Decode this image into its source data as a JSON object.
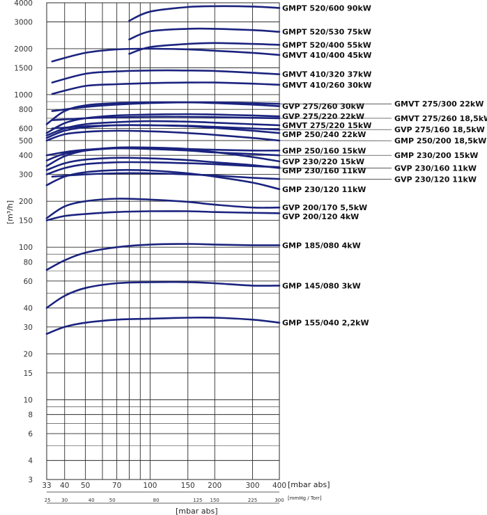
{
  "chart_data": {
    "type": "line",
    "ylabel": "[m³/h]",
    "xlabel": "[mbar abs]",
    "x2label": "[mmHg / Torr]",
    "bottom_label": "[mbar abs]",
    "y_scale": "log",
    "x_scale": "log",
    "ylim": [
      3,
      4000
    ],
    "xlim": [
      33,
      400
    ],
    "grid": true,
    "colors": {
      "curve": "#1a237e",
      "grid": "#2a2a2a",
      "text": "#111111"
    },
    "y_ticks": [
      {
        "v": 3,
        "t": "3"
      },
      {
        "v": 4,
        "t": "4"
      },
      {
        "v": 6,
        "t": "6"
      },
      {
        "v": 8,
        "t": "8"
      },
      {
        "v": 10,
        "t": "10"
      },
      {
        "v": 15,
        "t": "15"
      },
      {
        "v": 20,
        "t": "20"
      },
      {
        "v": 30,
        "t": "30"
      },
      {
        "v": 40,
        "t": "40"
      },
      {
        "v": 60,
        "t": "60"
      },
      {
        "v": 80,
        "t": "80"
      },
      {
        "v": 100,
        "t": "100"
      },
      {
        "v": 150,
        "t": "150"
      },
      {
        "v": 200,
        "t": "200"
      },
      {
        "v": 300,
        "t": "300"
      },
      {
        "v": 400,
        "t": "400"
      },
      {
        "v": 500,
        "t": "500"
      },
      {
        "v": 600,
        "t": "600"
      },
      {
        "v": 800,
        "t": "800"
      },
      {
        "v": 1000,
        "t": "1000"
      },
      {
        "v": 1500,
        "t": "1500"
      },
      {
        "v": 2000,
        "t": "2000"
      },
      {
        "v": 3000,
        "t": "3000"
      },
      {
        "v": 4000,
        "t": "4000"
      }
    ],
    "y_minor_lines": [
      5,
      7,
      9,
      50,
      70,
      90,
      500,
      700,
      900
    ],
    "x_ticks": [
      {
        "v": 33,
        "t": "33"
      },
      {
        "v": 40,
        "t": "40"
      },
      {
        "v": 50,
        "t": "50"
      },
      {
        "v": 70,
        "t": "70"
      },
      {
        "v": 100,
        "t": "100"
      },
      {
        "v": 150,
        "t": "150"
      },
      {
        "v": 200,
        "t": "200"
      },
      {
        "v": 300,
        "t": "300"
      },
      {
        "v": 400,
        "t": "400"
      }
    ],
    "x_grid": [
      33,
      40,
      50,
      60,
      70,
      80,
      90,
      100,
      150,
      200,
      300,
      400
    ],
    "x2_ticks": [
      {
        "v": 33.3,
        "t": "25"
      },
      {
        "v": 40,
        "t": "30"
      },
      {
        "v": 53.3,
        "t": "40"
      },
      {
        "v": 66.7,
        "t": "50"
      },
      {
        "v": 106.7,
        "t": "80"
      },
      {
        "v": 166.7,
        "t": "125"
      },
      {
        "v": 200,
        "t": "150"
      },
      {
        "v": 300,
        "t": "225"
      },
      {
        "v": 400,
        "t": "300"
      }
    ],
    "series": [
      {
        "name": "GMPT 520/600 90kW",
        "x": [
          80,
          100,
          150,
          200,
          300,
          400
        ],
        "y": [
          3050,
          3500,
          3750,
          3800,
          3780,
          3700
        ]
      },
      {
        "name": "GMPT 520/530 75kW",
        "x": [
          80,
          100,
          150,
          200,
          300,
          400
        ],
        "y": [
          2300,
          2600,
          2700,
          2700,
          2650,
          2580
        ]
      },
      {
        "name": "GMPT 520/400 55kW",
        "x": [
          80,
          100,
          150,
          200,
          300,
          400
        ],
        "y": [
          1850,
          2050,
          2150,
          2180,
          2150,
          2120
        ]
      },
      {
        "name": "GMVT 410/400 45kW",
        "x": [
          35,
          50,
          70,
          100,
          150,
          200,
          300,
          400
        ],
        "y": [
          1650,
          1880,
          1980,
          2000,
          1980,
          1940,
          1880,
          1820
        ]
      },
      {
        "name": "GMVT 410/320 37kW",
        "x": [
          35,
          50,
          70,
          100,
          150,
          200,
          300,
          400
        ],
        "y": [
          1200,
          1370,
          1420,
          1440,
          1440,
          1430,
          1390,
          1360
        ]
      },
      {
        "name": "GMVT 410/260 30kW",
        "x": [
          35,
          50,
          70,
          100,
          150,
          200,
          300,
          400
        ],
        "y": [
          1010,
          1140,
          1170,
          1190,
          1200,
          1200,
          1180,
          1160
        ]
      },
      {
        "name": "GVP 275/260 30kW",
        "x": [
          33,
          40,
          50,
          70,
          100,
          150,
          200,
          300,
          400
        ],
        "y": [
          640,
          780,
          850,
          880,
          890,
          890,
          880,
          860,
          840
        ]
      },
      {
        "name": "GMVT 275/300 22kW",
        "x": [
          35,
          50,
          70,
          100,
          150,
          200,
          300,
          400
        ],
        "y": [
          780,
          830,
          860,
          880,
          890,
          890,
          880,
          870
        ]
      },
      {
        "name": "GVP 275/220 22kW",
        "x": [
          33,
          40,
          50,
          70,
          100,
          150,
          200,
          300,
          400
        ],
        "y": [
          560,
          650,
          700,
          730,
          740,
          745,
          740,
          730,
          720
        ]
      },
      {
        "name": "GMVT 275/260 18,5kW",
        "x": [
          35,
          50,
          70,
          100,
          150,
          200,
          300,
          400
        ],
        "y": [
          680,
          700,
          710,
          715,
          715,
          712,
          705,
          700
        ]
      },
      {
        "name": "GMVT 275/220 15kW",
        "x": [
          33,
          40,
          50,
          70,
          100,
          150,
          200,
          300,
          400
        ],
        "y": [
          540,
          600,
          640,
          660,
          670,
          665,
          655,
          640,
          630
        ]
      },
      {
        "name": "GVP 275/160 18,5kW",
        "x": [
          35,
          50,
          70,
          100,
          150,
          200,
          300,
          400
        ],
        "y": [
          600,
          620,
          630,
          630,
          625,
          615,
          600,
          590
        ]
      },
      {
        "name": "GMP 250/240 22kW",
        "x": [
          33,
          40,
          50,
          70,
          100,
          150,
          200,
          300,
          400
        ],
        "y": [
          520,
          580,
          610,
          630,
          630,
          620,
          605,
          580,
          560
        ]
      },
      {
        "name": "GMP 250/200 18,5kW",
        "x": [
          33,
          40,
          50,
          70,
          100,
          150,
          200,
          300,
          400
        ],
        "y": [
          500,
          550,
          570,
          580,
          575,
          560,
          545,
          520,
          500
        ]
      },
      {
        "name": "GMP 250/160 15kW",
        "x": [
          33,
          40,
          50,
          70,
          100,
          150,
          200,
          300,
          400
        ],
        "y": [
          370,
          410,
          430,
          445,
          445,
          440,
          435,
          430,
          430
        ]
      },
      {
        "name": "GMP 230/200 15kW",
        "x": [
          33,
          40,
          50,
          70,
          100,
          150,
          200,
          300,
          400
        ],
        "y": [
          400,
          420,
          435,
          445,
          440,
          430,
          418,
          408,
          400
        ]
      },
      {
        "name": "GVP 230/220 15kW",
        "x": [
          33,
          40,
          50,
          70,
          100,
          150,
          200,
          300,
          400
        ],
        "y": [
          340,
          395,
          430,
          450,
          450,
          440,
          420,
          390,
          365
        ]
      },
      {
        "name": "GVP 230/160 11kW",
        "x": [
          33,
          40,
          50,
          70,
          100,
          150,
          200,
          300,
          400
        ],
        "y": [
          320,
          355,
          375,
          385,
          382,
          372,
          360,
          345,
          330
        ]
      },
      {
        "name": "GMP 230/160 11kW",
        "x": [
          33,
          40,
          50,
          70,
          100,
          150,
          200,
          300,
          400
        ],
        "y": [
          300,
          330,
          350,
          360,
          360,
          355,
          350,
          340,
          335
        ]
      },
      {
        "name": "GMP 230/120 11kW",
        "x": [
          33,
          40,
          50,
          70,
          100,
          150,
          200,
          300,
          400
        ],
        "y": [
          255,
          290,
          310,
          320,
          318,
          305,
          290,
          265,
          240
        ]
      },
      {
        "name": "GVP 230/120 11kW",
        "x": [
          35,
          50,
          70,
          100,
          150,
          200,
          300,
          400
        ],
        "y": [
          290,
          300,
          305,
          305,
          300,
          295,
          285,
          280
        ]
      },
      {
        "name": "GVP 200/170 5,5kW",
        "x": [
          33,
          40,
          50,
          70,
          100,
          150,
          200,
          300,
          400
        ],
        "y": [
          155,
          185,
          200,
          208,
          205,
          198,
          190,
          182,
          182
        ]
      },
      {
        "name": "GVP 200/120 4kW",
        "x": [
          33,
          40,
          50,
          70,
          100,
          150,
          200,
          300,
          400
        ],
        "y": [
          150,
          160,
          165,
          170,
          172,
          172,
          170,
          168,
          167
        ]
      },
      {
        "name": "GMP 185/080 4kW",
        "x": [
          33,
          40,
          50,
          70,
          100,
          150,
          200,
          300,
          400
        ],
        "y": [
          71,
          82,
          92,
          100,
          104,
          105,
          104,
          103,
          103
        ]
      },
      {
        "name": "GMP 145/080 3kW",
        "x": [
          33,
          40,
          50,
          70,
          100,
          150,
          200,
          300,
          400
        ],
        "y": [
          40,
          48,
          54,
          58,
          59,
          59,
          58,
          56,
          56
        ]
      },
      {
        "name": "GMP 155/040 2,2kW",
        "x": [
          33,
          40,
          50,
          70,
          100,
          150,
          200,
          300,
          400
        ],
        "y": [
          27,
          30,
          32,
          33.5,
          34,
          34.5,
          34.5,
          33.5,
          32
        ]
      }
    ],
    "labels_left": [
      "GMPT 520/600 90kW",
      "GMPT 520/530 75kW",
      "GMPT 520/400 55kW",
      "GMVT 410/400 45kW",
      "GMVT 410/320 37kW",
      "GMVT 410/260 30kW",
      "GVP 275/260 30kW",
      "GVP 275/220 22kW",
      "GMVT 275/220 15kW",
      "GMP 250/240 22kW",
      "GMP 250/160 15kW",
      "GVP 230/220 15kW",
      "GMP 230/160 11kW",
      "GMP 230/120 11kW",
      "GVP 200/170 5,5kW",
      "GVP 200/120 4kW",
      "GMP 185/080 4kW",
      "GMP 145/080 3kW",
      "GMP 155/040 2,2kW"
    ],
    "labels_right": [
      "GMVT 275/300 22kW",
      "GMVT 275/260 18,5kW",
      "GVP 275/160 18,5kW",
      "GMP 250/200 18,5kW",
      "GMP 230/200 15kW",
      "GVP 230/160 11kW",
      "GVP 230/120 11kW"
    ]
  }
}
